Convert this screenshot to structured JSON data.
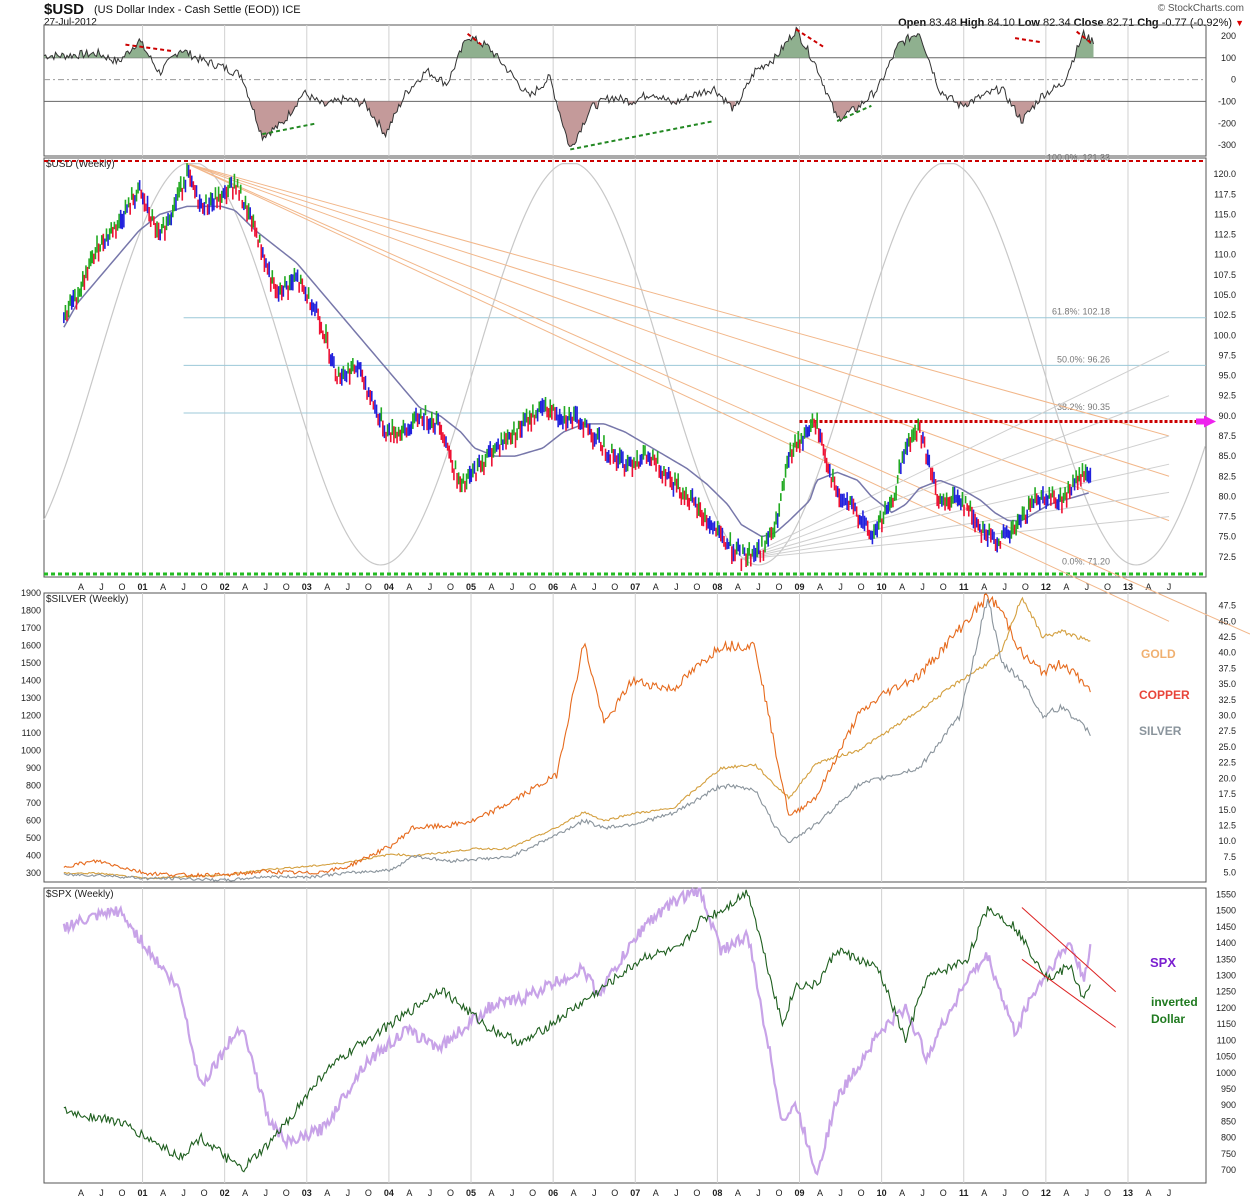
{
  "header": {
    "symbol": "$USD",
    "name": "(US Dollar Index - Cash Settle (EOD)) ICE",
    "date": "27-Jul-2012",
    "brand": "© StockCharts.com",
    "open_label": "Open",
    "open": "83.48",
    "high_label": "High",
    "high": "84.10",
    "low_label": "Low",
    "low": "82.34",
    "close_label": "Close",
    "close": "82.71",
    "chg_label": "Chg",
    "chg": "-0.77 (-0.92%)"
  },
  "colors": {
    "up": "#22aa22",
    "down": "#ee1133",
    "neutral": "#2222dd",
    "ma": "#7777aa",
    "fan": "#f2b78a",
    "cycle": "#c8c8c8",
    "fib": "#9cc8d8",
    "gold": "#d4a040",
    "copper": "#e66b1e",
    "silver": "#8a949c",
    "spx": "#c8a3e8",
    "invdollar": "#1f5f1f",
    "resistance": "#cc0000",
    "support": "#22bb22",
    "arrow": "#ee22ee"
  },
  "chart_data": [
    {
      "id": "oscillator",
      "type": "area",
      "ylim": [
        -350,
        250
      ],
      "y_ticks": [
        "200",
        "100",
        "0",
        "-100",
        "-200",
        "-300"
      ],
      "reference_levels": [
        100,
        0,
        -100
      ],
      "x": [
        "2000-06",
        "2000-09",
        "2000-12",
        "2001-03",
        "2001-06",
        "2001-09",
        "2001-12",
        "2002-03",
        "2002-06",
        "2002-09",
        "2002-12",
        "2003-03",
        "2003-06",
        "2003-09",
        "2003-12",
        "2004-03",
        "2004-06",
        "2004-09",
        "2004-12",
        "2005-03",
        "2005-06",
        "2005-09",
        "2005-12",
        "2006-03",
        "2006-06",
        "2006-09",
        "2006-12",
        "2007-03",
        "2007-06",
        "2007-09",
        "2007-12",
        "2008-03",
        "2008-06",
        "2008-09",
        "2008-12",
        "2009-03",
        "2009-06",
        "2009-09",
        "2009-12",
        "2010-03",
        "2010-06",
        "2010-09",
        "2010-12",
        "2011-03",
        "2011-06",
        "2011-09",
        "2011-12",
        "2012-03",
        "2012-06",
        "2012-07"
      ],
      "values": [
        120,
        80,
        180,
        30,
        140,
        90,
        60,
        20,
        -260,
        -200,
        -60,
        -120,
        -90,
        -110,
        -250,
        -60,
        40,
        -20,
        200,
        150,
        40,
        -80,
        10,
        -320,
        -130,
        -80,
        -100,
        -60,
        -110,
        -70,
        -40,
        -140,
        40,
        100,
        230,
        60,
        -180,
        -130,
        -40,
        160,
        220,
        -50,
        -120,
        -80,
        -40,
        -190,
        -70,
        -20,
        210,
        180
      ],
      "signals": [
        {
          "color": "#cc0000",
          "from": [
            "2000-10",
            160
          ],
          "to": [
            "2001-05",
            130
          ]
        },
        {
          "color": "#228822",
          "from": [
            "2002-06",
            -250
          ],
          "to": [
            "2003-02",
            -200
          ]
        },
        {
          "color": "#cc0000",
          "from": [
            "2004-12",
            210
          ],
          "to": [
            "2005-02",
            160
          ]
        },
        {
          "color": "#228822",
          "from": [
            "2006-03",
            -320
          ],
          "to": [
            "2007-12",
            -190
          ]
        },
        {
          "color": "#cc0000",
          "from": [
            "2008-12",
            230
          ],
          "to": [
            "2009-04",
            150
          ]
        },
        {
          "color": "#228822",
          "from": [
            "2009-06",
            -190
          ],
          "to": [
            "2009-11",
            -120
          ]
        },
        {
          "color": "#cc0000",
          "from": [
            "2011-08",
            190
          ],
          "to": [
            "2011-12",
            170
          ]
        },
        {
          "color": "#cc0000",
          "from": [
            "2012-05",
            220
          ],
          "to": [
            "2012-07",
            170
          ]
        }
      ]
    },
    {
      "id": "usd",
      "type": "bar",
      "title": "$USD (Weekly)",
      "ylim": [
        70,
        122
      ],
      "y_ticks": [
        "120.0",
        "117.5",
        "115.0",
        "112.5",
        "110.0",
        "107.5",
        "105.0",
        "102.5",
        "100.0",
        "97.5",
        "95.0",
        "92.5",
        "90.0",
        "87.5",
        "85.0",
        "82.5",
        "80.0",
        "77.5",
        "75.0",
        "72.5"
      ],
      "x": [
        "2000-01",
        "2000-03",
        "2000-06",
        "2000-09",
        "2000-12",
        "2001-03",
        "2001-07",
        "2001-09",
        "2001-12",
        "2002-02",
        "2002-05",
        "2002-08",
        "2002-11",
        "2003-02",
        "2003-05",
        "2003-08",
        "2003-12",
        "2004-03",
        "2004-05",
        "2004-08",
        "2004-11",
        "2005-01",
        "2005-04",
        "2005-07",
        "2005-11",
        "2006-02",
        "2006-05",
        "2006-08",
        "2006-11",
        "2007-02",
        "2007-05",
        "2007-08",
        "2007-11",
        "2008-02",
        "2008-04",
        "2008-07",
        "2008-09",
        "2008-11",
        "2009-02",
        "2009-03",
        "2009-06",
        "2009-09",
        "2009-11",
        "2010-02",
        "2010-04",
        "2010-06",
        "2010-09",
        "2010-12",
        "2011-03",
        "2011-05",
        "2011-07",
        "2011-09",
        "2011-11",
        "2012-01",
        "2012-03",
        "2012-05",
        "2012-07"
      ],
      "values": [
        102.5,
        105,
        111,
        114,
        118,
        112,
        120,
        116,
        117,
        119,
        113,
        105,
        107,
        103,
        95,
        96,
        88,
        88,
        90,
        89,
        81,
        83,
        86,
        88,
        91,
        90,
        89,
        86,
        84,
        85,
        83,
        80,
        77,
        74,
        72.5,
        73.5,
        76,
        85,
        88.5,
        89,
        80,
        78,
        75,
        79,
        86,
        88.5,
        79,
        80,
        76,
        74.5,
        75,
        77,
        80,
        80,
        79.5,
        82,
        83
      ],
      "moving_average": [
        101,
        104,
        107,
        110,
        113,
        115,
        116,
        116,
        116,
        115.5,
        113,
        111,
        109,
        106,
        103,
        100,
        96,
        93,
        91,
        90,
        88,
        86,
        85,
        85,
        86,
        88,
        89,
        89,
        88,
        86.5,
        85,
        83.5,
        81.5,
        79,
        76.5,
        75,
        75.5,
        77,
        79.5,
        82,
        83,
        82,
        80,
        78,
        79,
        81,
        82,
        81,
        79.5,
        78,
        77,
        77,
        78,
        79,
        79.5,
        80,
        80.5
      ],
      "annotations": {
        "fib_levels": [
          {
            "label": "100.0%: 121.33",
            "value": 121.33
          },
          {
            "label": "61.8%: 102.18",
            "value": 102.18
          },
          {
            "label": "50.0%: 96.26",
            "value": 96.26
          },
          {
            "label": "38.2%: 90.35",
            "value": 90.35
          },
          {
            "label": "0.0%: 71.20",
            "value": 71.2
          }
        ],
        "resistance": 89.3,
        "fan_origin": [
          "2001-07",
          121.3
        ],
        "fan_targets": [
          [
            2013.5,
            64.5
          ],
          [
            2013.5,
            77
          ],
          [
            2013.5,
            82.5
          ],
          [
            2013.5,
            87.5
          ]
        ],
        "fan2_origin": [
          "2008-04",
          72.2
        ],
        "fan2_targets": [
          [
            2013.5,
            98
          ],
          [
            2013.5,
            92.5
          ],
          [
            2013.5,
            87.5
          ],
          [
            2013.5,
            84
          ],
          [
            2013.5,
            80.5
          ],
          [
            2013.5,
            77.5
          ]
        ],
        "cycle_troughs": [
          2003.9,
          2008.7
        ],
        "cycle_peaks": [
          2006.0,
          2010.4
        ]
      },
      "x_ticks": [
        "A",
        "J",
        "O",
        "01",
        "A",
        "J",
        "O",
        "02",
        "A",
        "J",
        "O",
        "03",
        "A",
        "J",
        "O",
        "04",
        "A",
        "J",
        "O",
        "05",
        "A",
        "J",
        "O",
        "06",
        "A",
        "J",
        "O",
        "07",
        "A",
        "J",
        "O",
        "08",
        "A",
        "J",
        "O",
        "09",
        "A",
        "J",
        "O",
        "10",
        "A",
        "J",
        "O",
        "11",
        "A",
        "J",
        "O",
        "12",
        "A",
        "J",
        "O",
        "13",
        "A",
        "J"
      ]
    },
    {
      "id": "metals",
      "type": "line",
      "title": "$SILVER (Weekly)",
      "ylim": [
        250,
        1900
      ],
      "y_ticks_left": [
        "1900",
        "1800",
        "1700",
        "1600",
        "1500",
        "1400",
        "1300",
        "1200",
        "1100",
        "1000",
        "900",
        "800",
        "700",
        "600",
        "500",
        "400",
        "300"
      ],
      "y_ticks_right": [
        "47.5",
        "45.0",
        "42.5",
        "40.0",
        "37.5",
        "35.0",
        "32.5",
        "30.0",
        "27.5",
        "25.0",
        "22.5",
        "20.0",
        "17.5",
        "15.0",
        "12.5",
        "10.0",
        "7.5",
        "5.0"
      ],
      "x": [
        "2000-01",
        "2000-06",
        "2001-01",
        "2001-06",
        "2002-01",
        "2002-06",
        "2003-01",
        "2003-06",
        "2004-01",
        "2004-04",
        "2004-09",
        "2005-01",
        "2005-06",
        "2006-01",
        "2006-05",
        "2006-08",
        "2006-12",
        "2007-06",
        "2008-01",
        "2008-06",
        "2008-09",
        "2008-11",
        "2009-03",
        "2009-09",
        "2010-01",
        "2010-06",
        "2010-12",
        "2011-04",
        "2011-06",
        "2011-09",
        "2011-12",
        "2012-03",
        "2012-07"
      ],
      "series": [
        {
          "name": "GOLD",
          "values": [
            300,
            300,
            270,
            280,
            290,
            320,
            340,
            360,
            410,
            400,
            420,
            440,
            440,
            560,
            650,
            600,
            640,
            670,
            900,
            920,
            800,
            730,
            930,
            1000,
            1100,
            1230,
            1400,
            1500,
            1560,
            1880,
            1650,
            1680,
            1620
          ]
        },
        {
          "name": "COPPER",
          "values": [
            340,
            370,
            300,
            290,
            290,
            310,
            300,
            330,
            460,
            560,
            570,
            600,
            700,
            860,
            1620,
            1150,
            1400,
            1350,
            1600,
            1600,
            1000,
            620,
            740,
            1200,
            1330,
            1430,
            1700,
            1880,
            1800,
            1550,
            1450,
            1500,
            1350
          ]
        },
        {
          "name": "SILVER",
          "values": [
            290,
            290,
            270,
            270,
            260,
            280,
            280,
            300,
            320,
            400,
            370,
            380,
            390,
            520,
            600,
            560,
            580,
            640,
            800,
            780,
            560,
            480,
            580,
            800,
            850,
            900,
            1200,
            1880,
            1500,
            1400,
            1200,
            1250,
            1100
          ]
        }
      ]
    },
    {
      "id": "spx",
      "type": "line",
      "title": "$SPX (Weekly)",
      "ylim": [
        660,
        1570
      ],
      "y_ticks": [
        "1550",
        "1500",
        "1450",
        "1400",
        "1350",
        "1300",
        "1250",
        "1200",
        "1150",
        "1100",
        "1050",
        "1000",
        "950",
        "900",
        "850",
        "800",
        "750",
        "700"
      ],
      "x": [
        "2000-01",
        "2000-09",
        "2001-06",
        "2001-09",
        "2002-03",
        "2002-07",
        "2002-10",
        "2003-03",
        "2003-09",
        "2004-03",
        "2004-08",
        "2005-03",
        "2005-08",
        "2006-05",
        "2006-07",
        "2007-02",
        "2007-07",
        "2007-10",
        "2008-01",
        "2008-05",
        "2008-10",
        "2008-12",
        "2009-03",
        "2009-06",
        "2009-12",
        "2010-04",
        "2010-07",
        "2011-01",
        "2011-04",
        "2011-08",
        "2011-10",
        "2012-01",
        "2012-04",
        "2012-06",
        "2012-07"
      ],
      "series": [
        {
          "name": "SPX",
          "values": [
            1450,
            1500,
            1250,
            960,
            1150,
            850,
            780,
            830,
            1030,
            1130,
            1080,
            1200,
            1230,
            1320,
            1240,
            1460,
            1540,
            1560,
            1380,
            1420,
            850,
            900,
            690,
            920,
            1120,
            1200,
            1050,
            1290,
            1360,
            1120,
            1220,
            1320,
            1400,
            1290,
            1385
          ]
        },
        {
          "name": "inverted Dollar",
          "values": [
            880,
            850,
            740,
            800,
            700,
            780,
            860,
            1000,
            1100,
            1180,
            1260,
            1140,
            1090,
            1220,
            1250,
            1360,
            1380,
            1470,
            1500,
            1560,
            1150,
            1270,
            1270,
            1380,
            1320,
            1100,
            1290,
            1350,
            1510,
            1450,
            1380,
            1290,
            1330,
            1230,
            1260
          ]
        }
      ],
      "channel": {
        "upper": [
          [
            "2011-09",
            1510
          ],
          [
            "2012-07",
            1280
          ]
        ],
        "lower": [
          [
            "2011-09",
            1350
          ],
          [
            "2012-07",
            1170
          ]
        ]
      },
      "x_ticks": [
        "A",
        "J",
        "O",
        "01",
        "A",
        "J",
        "O",
        "02",
        "A",
        "J",
        "O",
        "03",
        "A",
        "J",
        "O",
        "04",
        "A",
        "J",
        "O",
        "05",
        "A",
        "J",
        "O",
        "06",
        "A",
        "J",
        "O",
        "07",
        "A",
        "J",
        "O",
        "08",
        "A",
        "J",
        "O",
        "09",
        "A",
        "J",
        "O",
        "10",
        "A",
        "J",
        "O",
        "11",
        "A",
        "J",
        "O",
        "12",
        "A",
        "J",
        "O",
        "13",
        "A",
        "J"
      ]
    }
  ],
  "legend": {
    "gold": "GOLD",
    "copper": "COPPER",
    "silver": "SILVER",
    "spx": "SPX",
    "inv1": "inverted",
    "inv2": "Dollar"
  }
}
